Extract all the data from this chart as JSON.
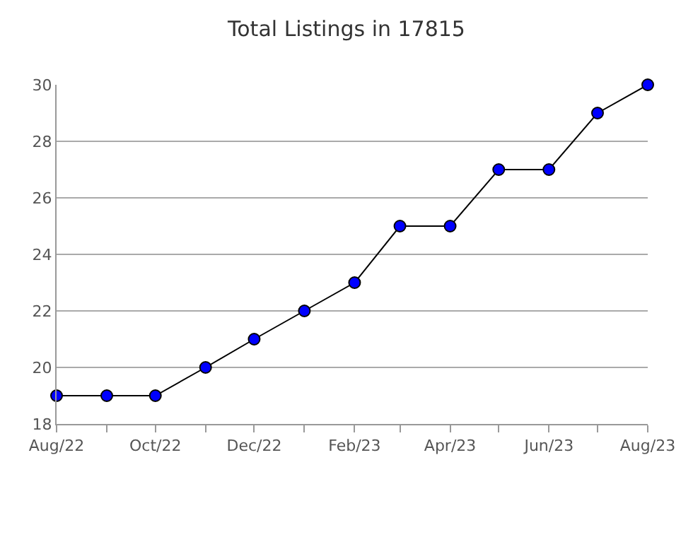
{
  "chart_data": {
    "type": "line",
    "title": "Total Listings in 17815",
    "x": [
      "2022-08",
      "2022-09",
      "2022-10",
      "2022-11",
      "2022-12",
      "2023-01",
      "2023-02",
      "2023-03",
      "2023-04",
      "2023-05",
      "2023-06",
      "2023-07",
      "2023-08"
    ],
    "series": [
      {
        "color": "#0000ff",
        "values": [
          19,
          19,
          19,
          20,
          21,
          22,
          23,
          25,
          25,
          27,
          27,
          29,
          30
        ]
      }
    ],
    "xlim": [
      "2022-08",
      "2023-08"
    ],
    "xticks": [
      {
        "value": "2022-08",
        "label": "Aug/22"
      },
      {
        "value": "2022-09",
        "label": null
      },
      {
        "value": "2022-10",
        "label": "Oct/22"
      },
      {
        "value": "2022-11",
        "label": null
      },
      {
        "value": "2022-12",
        "label": "Dec/22"
      },
      {
        "value": "2023-01",
        "label": null
      },
      {
        "value": "2023-02",
        "label": "Feb/23"
      },
      {
        "value": "2023-03",
        "label": null
      },
      {
        "value": "2023-04",
        "label": "Apr/23"
      },
      {
        "value": "2023-05",
        "label": null
      },
      {
        "value": "2023-06",
        "label": "Jun/23"
      },
      {
        "value": "2023-07",
        "label": null
      },
      {
        "value": "2023-08",
        "label": "Aug/23"
      }
    ],
    "ylim": [
      18,
      30
    ],
    "yticks": [
      18,
      20,
      22,
      24,
      26,
      28,
      30
    ],
    "grid": "y",
    "marker": "circle",
    "line_style": "solid"
  }
}
